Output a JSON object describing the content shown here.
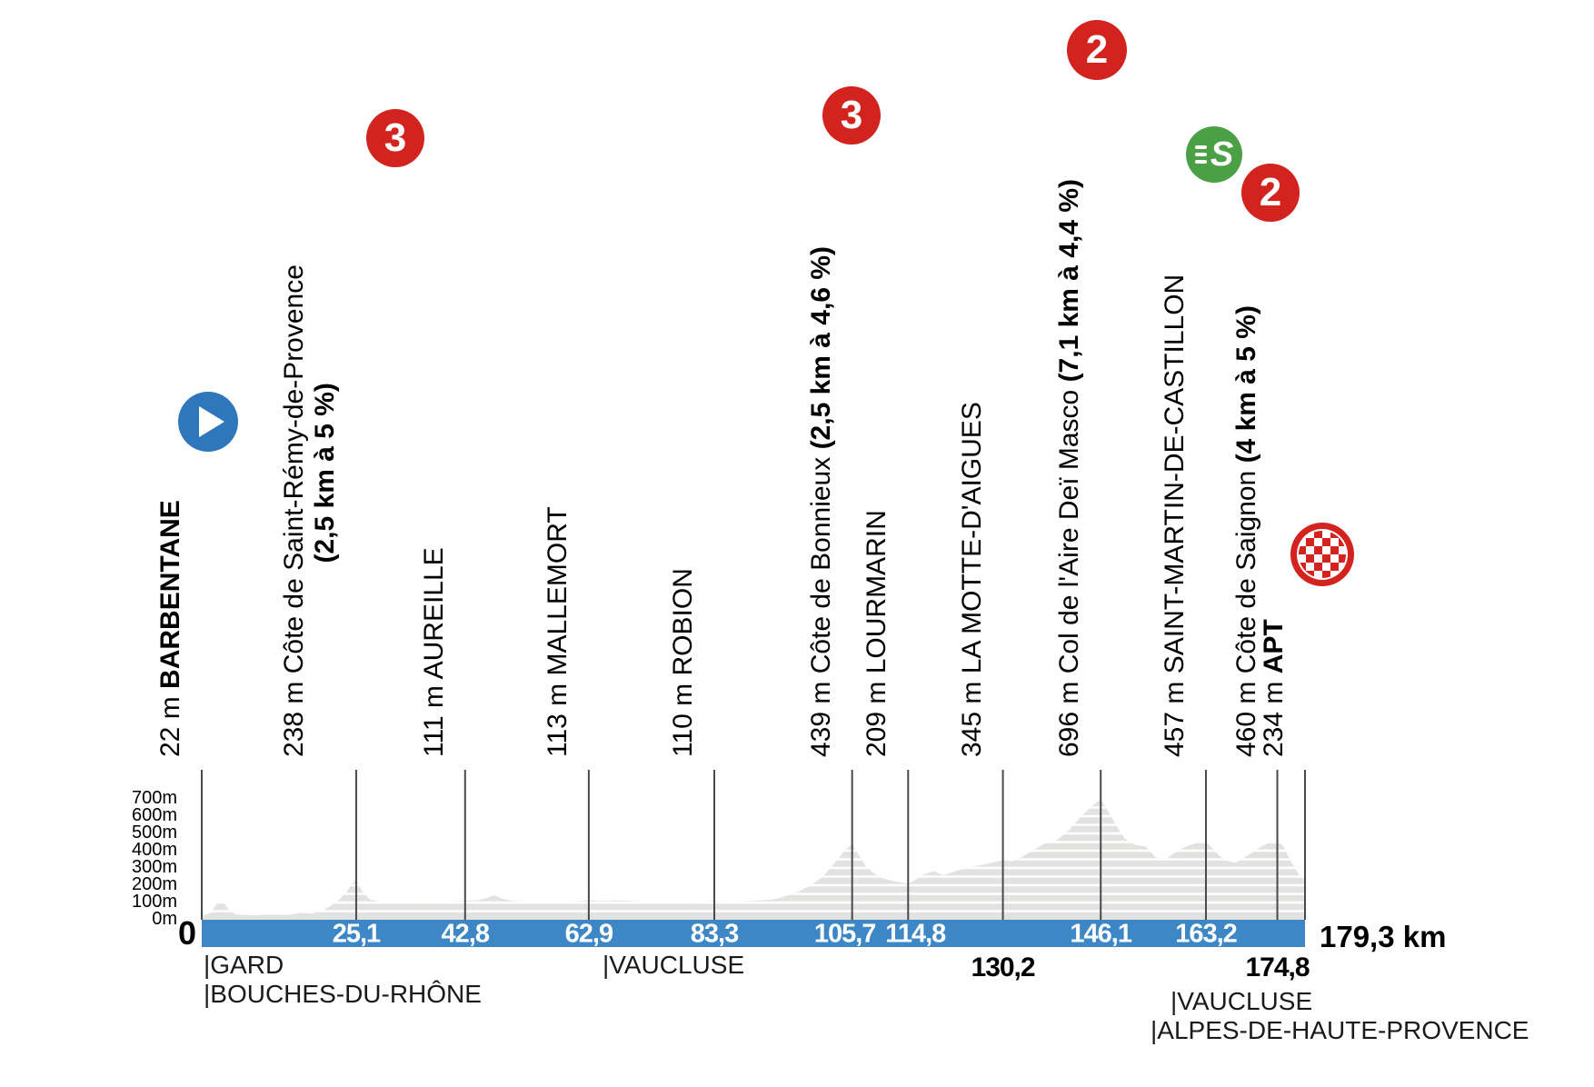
{
  "stage": {
    "start_km_label": "0",
    "total_distance_label": "179,3 km"
  },
  "colors": {
    "bar_blue": "#3e87c6",
    "badge_blue": "#2d77ba",
    "badge_red": "#d2231f",
    "badge_green": "#4ba045",
    "profile_gray": "#e3e2e0",
    "leader_line": "#4a4a4a"
  },
  "elevation_axis": {
    "labels": [
      "700m",
      "600m",
      "500m",
      "400m",
      "300m",
      "200m",
      "100m",
      "0m"
    ],
    "values_m": [
      700,
      600,
      500,
      400,
      300,
      200,
      100,
      0
    ]
  },
  "departments": [
    {
      "label": "|GARD"
    },
    {
      "label": "|BOUCHES-DU-RHÔNE"
    },
    {
      "label": "|VAUCLUSE"
    },
    {
      "label": "|VAUCLUSE"
    },
    {
      "label": "|ALPES-DE-HAUTE-PROVENCE"
    }
  ],
  "waypoints": [
    {
      "km": 0,
      "km_label": "",
      "elevation_label": "22 m",
      "name": "BARBENTANE",
      "name_bold": true,
      "badge": {
        "type": "start"
      }
    },
    {
      "km": 25.1,
      "km_label": "25,1",
      "elevation_label": "238 m",
      "name": "Côte de Saint-Rémy-de-Provence",
      "stats": "(2,5 km à 5 %)",
      "stats_on_second_line": true,
      "badge": {
        "type": "category",
        "label": "3"
      }
    },
    {
      "km": 42.8,
      "km_label": "42,8",
      "elevation_label": "111 m",
      "name": "AUREILLE"
    },
    {
      "km": 62.9,
      "km_label": "62,9",
      "elevation_label": "113 m",
      "name": "MALLEMORT"
    },
    {
      "km": 83.3,
      "km_label": "83,3",
      "elevation_label": "110 m",
      "name": "ROBION"
    },
    {
      "km": 105.7,
      "km_label": "105,7",
      "elevation_label": "439 m",
      "name": "Côte de Bonnieux",
      "stats": "(2,5 km à 4,6 %)",
      "badge": {
        "type": "category",
        "label": "3"
      }
    },
    {
      "km": 114.8,
      "km_label": "114,8",
      "elevation_label": "209 m",
      "name": "LOURMARIN"
    },
    {
      "km": 130.2,
      "km_label": "130,2",
      "km_label_below": true,
      "elevation_label": "345 m",
      "name": "LA MOTTE-D'AIGUES"
    },
    {
      "km": 146.1,
      "km_label": "146,1",
      "elevation_label": "696 m",
      "name": "Col de l'Aire Deï Masco",
      "stats": "(7,1 km à 4,4 %)",
      "badge": {
        "type": "category",
        "label": "2"
      }
    },
    {
      "km": 163.2,
      "km_label": "163,2",
      "elevation_label": "457 m",
      "name": "SAINT-MARTIN-DE-CASTILLON",
      "badge": {
        "type": "sprint",
        "label": "S"
      }
    },
    {
      "km": 174.8,
      "km_label": "174,8",
      "km_label_below": true,
      "elevation_label": "460 m",
      "name": "Côte de Saignon",
      "stats": "(4 km à 5 %)",
      "badge": {
        "type": "category",
        "label": "2"
      }
    },
    {
      "km": 179.3,
      "km_label": "",
      "elevation_label": "234 m",
      "name": "APT",
      "name_bold": true,
      "badge": {
        "type": "finish"
      }
    }
  ],
  "chart_data": {
    "type": "area",
    "title": "",
    "x_unit": "km",
    "y_unit": "m",
    "xlim": [
      0,
      179.3
    ],
    "ylim": [
      0,
      700
    ],
    "y_ticks": [
      "700m",
      "600m",
      "500m",
      "400m",
      "300m",
      "200m",
      "100m",
      "0m"
    ],
    "x_ticks": [
      "0",
      "25,1",
      "42,8",
      "62,9",
      "83,3",
      "105,7",
      "114,8",
      "130,2",
      "146,1",
      "163,2",
      "174,8",
      "179,3 km"
    ],
    "grid": "horizontal-contour-bands-every-50m",
    "legend": "none",
    "profile_points": [
      [
        0,
        22
      ],
      [
        1.5,
        40
      ],
      [
        2.5,
        95
      ],
      [
        3.5,
        100
      ],
      [
        4.5,
        55
      ],
      [
        5.5,
        30
      ],
      [
        8,
        26
      ],
      [
        11,
        30
      ],
      [
        14,
        28
      ],
      [
        16,
        40
      ],
      [
        18,
        36
      ],
      [
        20,
        60
      ],
      [
        22,
        105
      ],
      [
        23.5,
        160
      ],
      [
        24.6,
        215
      ],
      [
        25.1,
        238
      ],
      [
        26,
        170
      ],
      [
        27.2,
        120
      ],
      [
        29,
        103
      ],
      [
        32,
        100
      ],
      [
        35,
        104
      ],
      [
        38,
        100
      ],
      [
        41,
        106
      ],
      [
        42.8,
        111
      ],
      [
        44.5,
        112
      ],
      [
        46,
        122
      ],
      [
        47.5,
        142
      ],
      [
        49,
        120
      ],
      [
        51,
        108
      ],
      [
        54,
        101
      ],
      [
        57,
        100
      ],
      [
        60,
        106
      ],
      [
        62.9,
        113
      ],
      [
        65.5,
        109
      ],
      [
        68,
        113
      ],
      [
        71,
        107
      ],
      [
        74,
        100
      ],
      [
        77,
        103
      ],
      [
        80,
        98
      ],
      [
        83.3,
        110
      ],
      [
        85.5,
        103
      ],
      [
        88,
        108
      ],
      [
        90.5,
        112
      ],
      [
        93,
        118
      ],
      [
        95,
        138
      ],
      [
        97,
        163
      ],
      [
        99,
        200
      ],
      [
        101,
        252
      ],
      [
        103,
        335
      ],
      [
        104.6,
        405
      ],
      [
        105.7,
        439
      ],
      [
        106.6,
        385
      ],
      [
        108,
        308
      ],
      [
        110,
        248
      ],
      [
        112.5,
        222
      ],
      [
        114.8,
        209
      ],
      [
        116,
        232
      ],
      [
        117.5,
        266
      ],
      [
        119,
        281
      ],
      [
        120.5,
        258
      ],
      [
        122,
        276
      ],
      [
        124,
        299
      ],
      [
        126,
        312
      ],
      [
        128,
        328
      ],
      [
        130.2,
        345
      ],
      [
        131.5,
        339
      ],
      [
        133,
        356
      ],
      [
        135,
        401
      ],
      [
        137,
        441
      ],
      [
        139,
        462
      ],
      [
        141,
        521
      ],
      [
        143,
        601
      ],
      [
        145,
        668
      ],
      [
        146.1,
        696
      ],
      [
        147.2,
        635
      ],
      [
        148.6,
        548
      ],
      [
        150,
        470
      ],
      [
        151.8,
        432
      ],
      [
        153.4,
        424
      ],
      [
        155,
        362
      ],
      [
        156.6,
        349
      ],
      [
        158.2,
        391
      ],
      [
        160,
        426
      ],
      [
        162,
        449
      ],
      [
        163.2,
        457
      ],
      [
        164.6,
        398
      ],
      [
        166.2,
        344
      ],
      [
        168,
        331
      ],
      [
        170,
        372
      ],
      [
        172,
        421
      ],
      [
        174,
        456
      ],
      [
        174.8,
        460
      ],
      [
        175.8,
        424
      ],
      [
        177,
        341
      ],
      [
        178.4,
        255
      ],
      [
        179.3,
        234
      ]
    ]
  }
}
